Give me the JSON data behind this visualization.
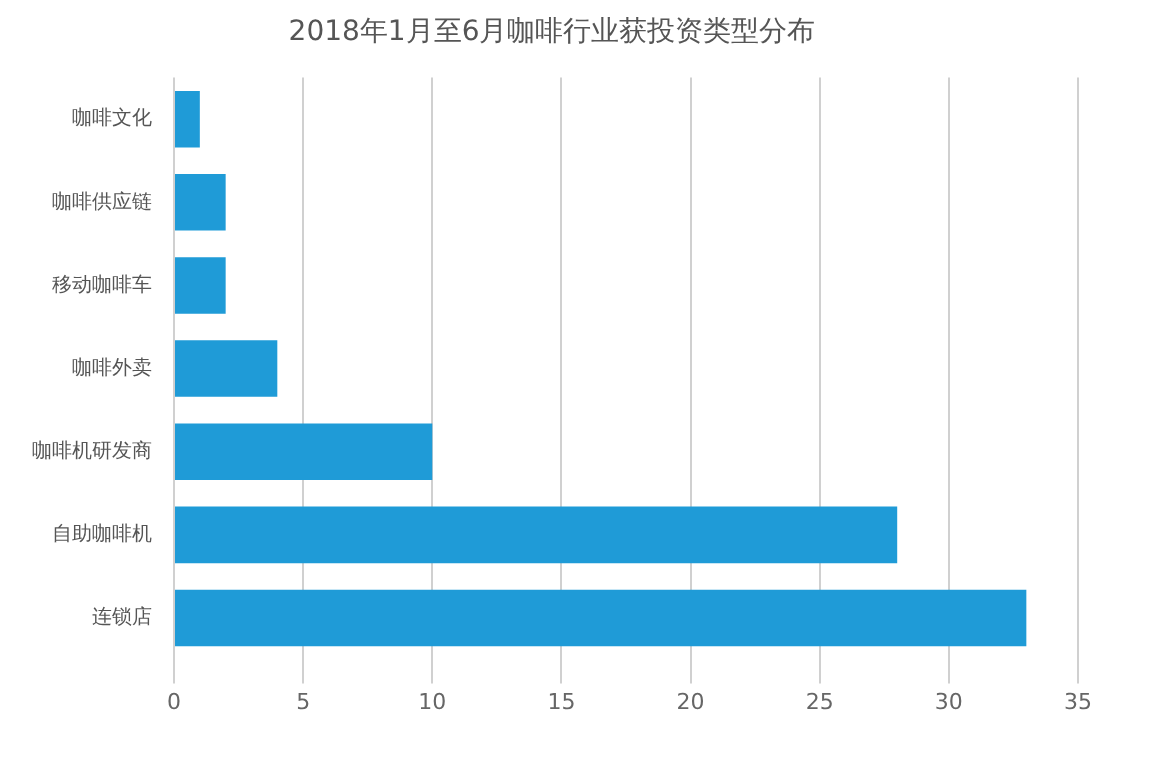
{
  "chart_data": {
    "type": "bar",
    "orientation": "horizontal",
    "title": "2018年1月至6月咖啡行业获投资类型分布",
    "categories": [
      "咖啡文化",
      "咖啡供应链",
      "移动咖啡车",
      "咖啡外卖",
      "咖啡机研发商",
      "自助咖啡机",
      "连锁店"
    ],
    "values": [
      1,
      2,
      2,
      4,
      10,
      28,
      33
    ],
    "color": "#1f9bd7",
    "xlim": [
      0,
      35
    ],
    "xticks": [
      0,
      5,
      10,
      15,
      20,
      25,
      30,
      35
    ],
    "grid": "x",
    "legend": false
  }
}
